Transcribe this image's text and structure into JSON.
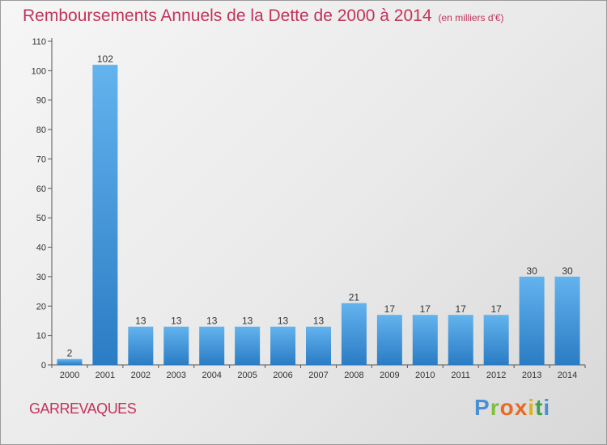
{
  "title": "Remboursements Annuels de la Dette de 2000 à 2014",
  "unit": "(en milliers d'€)",
  "place": "GARREVAQUES",
  "logo": "Proxiti",
  "colors": {
    "title": "#c2335a",
    "bar_top": "#63b3ee",
    "bar_bottom": "#2a7cc4"
  },
  "chart_data": {
    "type": "bar",
    "title": "Remboursements Annuels de la Dette de 2000 à 2014",
    "xlabel": "",
    "ylabel": "",
    "categories": [
      "2000",
      "2001",
      "2002",
      "2003",
      "2004",
      "2005",
      "2006",
      "2007",
      "2008",
      "2009",
      "2010",
      "2011",
      "2012",
      "2013",
      "2014"
    ],
    "values": [
      2,
      102,
      13,
      13,
      13,
      13,
      13,
      13,
      21,
      17,
      17,
      17,
      17,
      30,
      30
    ],
    "ylim": [
      0,
      110
    ],
    "yticks": [
      0,
      10,
      20,
      30,
      40,
      50,
      60,
      70,
      80,
      90,
      100,
      110
    ],
    "grid": false,
    "legend": "none"
  }
}
